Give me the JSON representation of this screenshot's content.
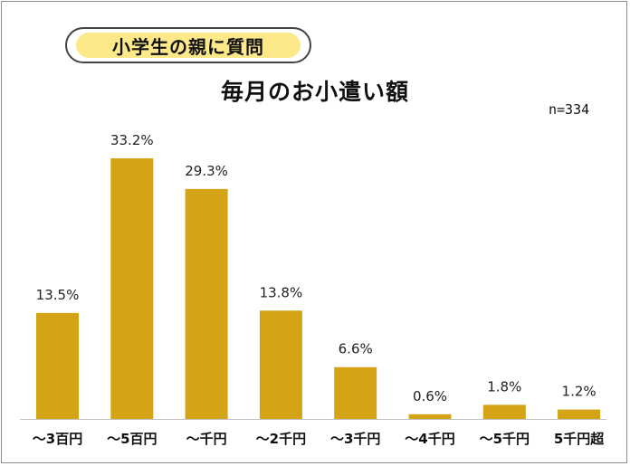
{
  "header": {
    "tag": "小学生の親に質問",
    "title": "毎月のお小遣い額",
    "n": "n=334"
  },
  "colors": {
    "bar": "#d4a416",
    "axis": "#bfbfbf",
    "text": "#222222"
  },
  "chart_data": {
    "type": "bar",
    "title": "毎月のお小遣い額",
    "categories": [
      "〜3百円",
      "〜5百円",
      "〜千円",
      "〜2千円",
      "〜3千円",
      "〜4千円",
      "〜5千円",
      "5千円超"
    ],
    "values": [
      13.5,
      33.2,
      29.3,
      13.8,
      6.6,
      0.6,
      1.8,
      1.2
    ],
    "value_labels": [
      "13.5%",
      "33.2%",
      "29.3%",
      "13.8%",
      "6.6%",
      "0.6%",
      "1.8%",
      "1.2%"
    ],
    "ylim": [
      0,
      33.2
    ],
    "grid": false,
    "legend": "none"
  }
}
